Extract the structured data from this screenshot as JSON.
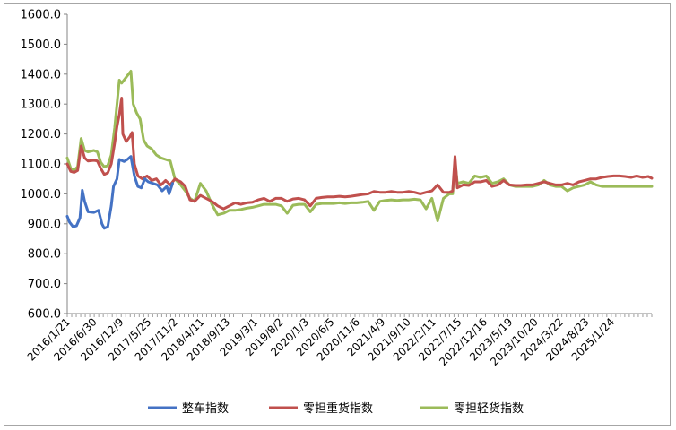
{
  "chart_data": {
    "type": "line",
    "title": "",
    "xlabel": "",
    "ylabel": "",
    "ylim": [
      600,
      1600
    ],
    "yticks": [
      "600.0",
      "700.0",
      "800.0",
      "900.0",
      "1000.0",
      "1100.0",
      "1200.0",
      "1300.0",
      "1400.0",
      "1500.0",
      "1600.0"
    ],
    "xlim": [
      "2016-01-21",
      "2025-09-25"
    ],
    "xticks": [
      "2016/1/21",
      "2016/6/30",
      "2016/12/9",
      "2017/5/25",
      "2017/11/2",
      "2018/4/11",
      "2018/9/13",
      "2019/3/1",
      "2019/8/2",
      "2020/1/3",
      "2020/6/5",
      "2020/11/6",
      "2021/4/9",
      "2021/9/10",
      "2022/2/11",
      "2022/7/15",
      "2022/12/16",
      "2023/5/19",
      "2023/10/20",
      "2024/3/22",
      "2024/8/23",
      "2025/1/24"
    ],
    "grid": false,
    "legend_position": "bottom",
    "series": [
      {
        "name": "整车指数",
        "color": "#4472c4",
        "points": [
          [
            "2016-01-21",
            925
          ],
          [
            "2016-02-04",
            905
          ],
          [
            "2016-02-25",
            890
          ],
          [
            "2016-03-17",
            893
          ],
          [
            "2016-04-07",
            920
          ],
          [
            "2016-04-21",
            1012
          ],
          [
            "2016-05-05",
            975
          ],
          [
            "2016-05-26",
            940
          ],
          [
            "2016-06-30",
            938
          ],
          [
            "2016-07-28",
            945
          ],
          [
            "2016-08-18",
            900
          ],
          [
            "2016-09-01",
            885
          ],
          [
            "2016-09-22",
            890
          ],
          [
            "2016-10-13",
            960
          ],
          [
            "2016-10-27",
            1025
          ],
          [
            "2016-11-17",
            1050
          ],
          [
            "2016-12-01",
            1115
          ],
          [
            "2016-12-29",
            1108
          ],
          [
            "2017-01-19",
            1115
          ],
          [
            "2017-02-09",
            1125
          ],
          [
            "2017-03-02",
            1060
          ],
          [
            "2017-03-23",
            1025
          ],
          [
            "2017-04-13",
            1020
          ],
          [
            "2017-05-04",
            1050
          ],
          [
            "2017-05-25",
            1040
          ],
          [
            "2017-06-22",
            1035
          ],
          [
            "2017-07-20",
            1030
          ],
          [
            "2017-08-17",
            1010
          ],
          [
            "2017-09-14",
            1025
          ],
          [
            "2017-09-28",
            1000
          ],
          [
            "2017-10-19",
            1035
          ]
        ]
      },
      {
        "name": "零担重货指数",
        "color": "#c0504d",
        "points": [
          [
            "2016-01-21",
            1100
          ],
          [
            "2016-02-11",
            1075
          ],
          [
            "2016-03-03",
            1072
          ],
          [
            "2016-03-24",
            1078
          ],
          [
            "2016-04-14",
            1160
          ],
          [
            "2016-05-05",
            1120
          ],
          [
            "2016-05-26",
            1110
          ],
          [
            "2016-06-30",
            1112
          ],
          [
            "2016-07-21",
            1110
          ],
          [
            "2016-08-11",
            1085
          ],
          [
            "2016-09-01",
            1065
          ],
          [
            "2016-09-22",
            1070
          ],
          [
            "2016-10-13",
            1100
          ],
          [
            "2016-11-03",
            1170
          ],
          [
            "2016-11-17",
            1225
          ],
          [
            "2016-12-01",
            1265
          ],
          [
            "2016-12-15",
            1320
          ],
          [
            "2016-12-22",
            1200
          ],
          [
            "2017-01-12",
            1175
          ],
          [
            "2017-02-02",
            1190
          ],
          [
            "2017-02-16",
            1205
          ],
          [
            "2017-03-02",
            1100
          ],
          [
            "2017-03-23",
            1060
          ],
          [
            "2017-04-20",
            1050
          ],
          [
            "2017-05-18",
            1060
          ],
          [
            "2017-06-15",
            1045
          ],
          [
            "2017-07-13",
            1050
          ],
          [
            "2017-08-10",
            1030
          ],
          [
            "2017-09-07",
            1045
          ],
          [
            "2017-10-05",
            1030
          ],
          [
            "2017-11-02",
            1050
          ],
          [
            "2017-12-07",
            1040
          ],
          [
            "2018-01-04",
            1025
          ],
          [
            "2018-02-01",
            980
          ],
          [
            "2018-03-01",
            975
          ],
          [
            "2018-04-05",
            995
          ],
          [
            "2018-05-10",
            985
          ],
          [
            "2018-06-14",
            975
          ],
          [
            "2018-07-19",
            960
          ],
          [
            "2018-08-23",
            950
          ],
          [
            "2018-09-27",
            960
          ],
          [
            "2018-11-01",
            970
          ],
          [
            "2018-12-06",
            965
          ],
          [
            "2019-01-10",
            970
          ],
          [
            "2019-02-14",
            972
          ],
          [
            "2019-03-21",
            980
          ],
          [
            "2019-04-25",
            985
          ],
          [
            "2019-05-30",
            975
          ],
          [
            "2019-07-04",
            985
          ],
          [
            "2019-08-08",
            985
          ],
          [
            "2019-09-12",
            975
          ],
          [
            "2019-10-17",
            983
          ],
          [
            "2019-11-21",
            985
          ],
          [
            "2019-12-26",
            980
          ],
          [
            "2020-01-30",
            960
          ],
          [
            "2020-03-05",
            985
          ],
          [
            "2020-04-09",
            988
          ],
          [
            "2020-05-14",
            990
          ],
          [
            "2020-06-18",
            990
          ],
          [
            "2020-07-23",
            992
          ],
          [
            "2020-08-27",
            990
          ],
          [
            "2020-10-01",
            992
          ],
          [
            "2020-11-05",
            995
          ],
          [
            "2020-12-10",
            998
          ],
          [
            "2021-01-14",
            1000
          ],
          [
            "2021-02-18",
            1008
          ],
          [
            "2021-03-25",
            1005
          ],
          [
            "2021-04-29",
            1005
          ],
          [
            "2021-06-03",
            1008
          ],
          [
            "2021-07-08",
            1005
          ],
          [
            "2021-08-12",
            1005
          ],
          [
            "2021-09-16",
            1008
          ],
          [
            "2021-10-21",
            1005
          ],
          [
            "2021-11-25",
            1000
          ],
          [
            "2021-12-30",
            1005
          ],
          [
            "2022-02-03",
            1010
          ],
          [
            "2022-03-10",
            1030
          ],
          [
            "2022-04-14",
            1005
          ],
          [
            "2022-05-19",
            1005
          ],
          [
            "2022-06-09",
            1010
          ],
          [
            "2022-06-23",
            1125
          ],
          [
            "2022-07-07",
            1020
          ],
          [
            "2022-08-11",
            1030
          ],
          [
            "2022-09-15",
            1028
          ],
          [
            "2022-10-20",
            1040
          ],
          [
            "2022-11-24",
            1040
          ],
          [
            "2022-12-29",
            1045
          ],
          [
            "2023-02-02",
            1025
          ],
          [
            "2023-03-09",
            1030
          ],
          [
            "2023-04-13",
            1045
          ],
          [
            "2023-05-18",
            1030
          ],
          [
            "2023-06-22",
            1028
          ],
          [
            "2023-07-27",
            1028
          ],
          [
            "2023-08-31",
            1030
          ],
          [
            "2023-10-05",
            1030
          ],
          [
            "2023-11-09",
            1035
          ],
          [
            "2023-12-14",
            1040
          ],
          [
            "2024-01-18",
            1035
          ],
          [
            "2024-02-22",
            1030
          ],
          [
            "2024-03-28",
            1030
          ],
          [
            "2024-05-02",
            1035
          ],
          [
            "2024-06-06",
            1030
          ],
          [
            "2024-07-11",
            1040
          ],
          [
            "2024-08-15",
            1045
          ],
          [
            "2024-09-19",
            1050
          ],
          [
            "2024-10-24",
            1050
          ],
          [
            "2024-11-28",
            1055
          ],
          [
            "2025-01-02",
            1058
          ],
          [
            "2025-02-06",
            1060
          ],
          [
            "2025-03-13",
            1060
          ],
          [
            "2025-04-17",
            1058
          ],
          [
            "2025-05-22",
            1055
          ],
          [
            "2025-06-26",
            1060
          ],
          [
            "2025-07-31",
            1055
          ],
          [
            "2025-09-04",
            1058
          ],
          [
            "2025-09-25",
            1052
          ]
        ]
      },
      {
        "name": "零担轻货指数",
        "color": "#9bbb59",
        "points": [
          [
            "2016-01-21",
            1120
          ],
          [
            "2016-02-11",
            1085
          ],
          [
            "2016-03-03",
            1080
          ],
          [
            "2016-03-24",
            1090
          ],
          [
            "2016-04-14",
            1185
          ],
          [
            "2016-05-05",
            1145
          ],
          [
            "2016-05-26",
            1140
          ],
          [
            "2016-06-30",
            1145
          ],
          [
            "2016-07-21",
            1140
          ],
          [
            "2016-08-11",
            1105
          ],
          [
            "2016-09-01",
            1090
          ],
          [
            "2016-09-22",
            1095
          ],
          [
            "2016-10-13",
            1130
          ],
          [
            "2016-11-03",
            1220
          ],
          [
            "2016-11-17",
            1300
          ],
          [
            "2016-12-01",
            1380
          ],
          [
            "2016-12-15",
            1370
          ],
          [
            "2017-01-05",
            1385
          ],
          [
            "2017-01-26",
            1400
          ],
          [
            "2017-02-09",
            1410
          ],
          [
            "2017-02-23",
            1300
          ],
          [
            "2017-03-16",
            1270
          ],
          [
            "2017-04-06",
            1250
          ],
          [
            "2017-04-27",
            1180
          ],
          [
            "2017-05-18",
            1160
          ],
          [
            "2017-06-15",
            1150
          ],
          [
            "2017-07-13",
            1130
          ],
          [
            "2017-08-10",
            1120
          ],
          [
            "2017-09-07",
            1115
          ],
          [
            "2017-10-05",
            1110
          ],
          [
            "2017-11-02",
            1050
          ],
          [
            "2017-12-07",
            1030
          ],
          [
            "2018-01-04",
            1010
          ],
          [
            "2018-02-01",
            985
          ],
          [
            "2018-03-01",
            975
          ],
          [
            "2018-04-05",
            1035
          ],
          [
            "2018-05-10",
            1010
          ],
          [
            "2018-06-14",
            965
          ],
          [
            "2018-07-19",
            930
          ],
          [
            "2018-08-23",
            935
          ],
          [
            "2018-09-27",
            945
          ],
          [
            "2018-11-01",
            945
          ],
          [
            "2018-12-06",
            948
          ],
          [
            "2019-01-10",
            952
          ],
          [
            "2019-02-14",
            955
          ],
          [
            "2019-03-21",
            960
          ],
          [
            "2019-04-25",
            965
          ],
          [
            "2019-05-30",
            965
          ],
          [
            "2019-07-04",
            965
          ],
          [
            "2019-08-08",
            960
          ],
          [
            "2019-09-12",
            935
          ],
          [
            "2019-10-17",
            962
          ],
          [
            "2019-11-21",
            965
          ],
          [
            "2019-12-26",
            965
          ],
          [
            "2020-01-30",
            940
          ],
          [
            "2020-03-05",
            965
          ],
          [
            "2020-04-09",
            968
          ],
          [
            "2020-05-14",
            968
          ],
          [
            "2020-06-18",
            968
          ],
          [
            "2020-07-23",
            970
          ],
          [
            "2020-08-27",
            968
          ],
          [
            "2020-10-01",
            970
          ],
          [
            "2020-11-05",
            970
          ],
          [
            "2020-12-10",
            972
          ],
          [
            "2021-01-14",
            975
          ],
          [
            "2021-02-18",
            945
          ],
          [
            "2021-03-25",
            975
          ],
          [
            "2021-04-29",
            978
          ],
          [
            "2021-06-03",
            980
          ],
          [
            "2021-07-08",
            978
          ],
          [
            "2021-08-12",
            980
          ],
          [
            "2021-09-16",
            980
          ],
          [
            "2021-10-21",
            982
          ],
          [
            "2021-11-25",
            980
          ],
          [
            "2021-12-30",
            950
          ],
          [
            "2022-02-03",
            985
          ],
          [
            "2022-03-10",
            910
          ],
          [
            "2022-04-14",
            985
          ],
          [
            "2022-05-19",
            1000
          ],
          [
            "2022-06-09",
            1000
          ],
          [
            "2022-06-23",
            1110
          ],
          [
            "2022-07-07",
            1035
          ],
          [
            "2022-08-11",
            1040
          ],
          [
            "2022-09-15",
            1035
          ],
          [
            "2022-10-20",
            1060
          ],
          [
            "2022-11-24",
            1055
          ],
          [
            "2022-12-29",
            1060
          ],
          [
            "2023-02-02",
            1035
          ],
          [
            "2023-03-09",
            1040
          ],
          [
            "2023-04-13",
            1050
          ],
          [
            "2023-05-18",
            1030
          ],
          [
            "2023-06-22",
            1025
          ],
          [
            "2023-07-27",
            1025
          ],
          [
            "2023-08-31",
            1025
          ],
          [
            "2023-10-05",
            1025
          ],
          [
            "2023-11-09",
            1030
          ],
          [
            "2023-12-14",
            1045
          ],
          [
            "2024-01-18",
            1030
          ],
          [
            "2024-02-22",
            1025
          ],
          [
            "2024-03-28",
            1025
          ],
          [
            "2024-05-02",
            1010
          ],
          [
            "2024-06-06",
            1020
          ],
          [
            "2024-07-11",
            1025
          ],
          [
            "2024-08-15",
            1030
          ],
          [
            "2024-09-19",
            1040
          ],
          [
            "2024-10-24",
            1030
          ],
          [
            "2024-11-28",
            1025
          ],
          [
            "2025-01-02",
            1025
          ],
          [
            "2025-02-06",
            1025
          ],
          [
            "2025-03-13",
            1025
          ],
          [
            "2025-04-17",
            1025
          ],
          [
            "2025-05-22",
            1025
          ],
          [
            "2025-06-26",
            1025
          ],
          [
            "2025-07-31",
            1025
          ],
          [
            "2025-09-04",
            1025
          ],
          [
            "2025-09-25",
            1025
          ]
        ]
      }
    ]
  }
}
